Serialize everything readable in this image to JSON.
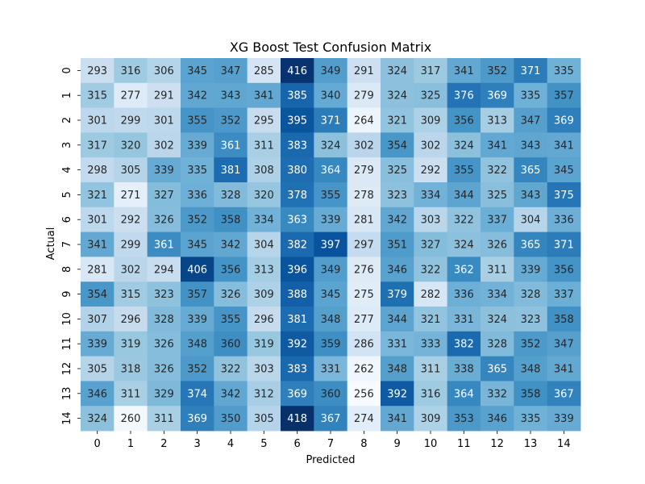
{
  "chart_data": {
    "type": "heatmap",
    "title": "XG Boost Test Confusion Matrix",
    "xlabel": "Predicted",
    "ylabel": "Actual",
    "x_categories": [
      "0",
      "1",
      "2",
      "3",
      "4",
      "5",
      "6",
      "7",
      "8",
      "9",
      "10",
      "11",
      "12",
      "13",
      "14"
    ],
    "y_categories": [
      "0",
      "1",
      "2",
      "3",
      "4",
      "5",
      "6",
      "7",
      "8",
      "9",
      "10",
      "11",
      "12",
      "13",
      "14"
    ],
    "values": [
      [
        293,
        316,
        306,
        345,
        347,
        285,
        416,
        349,
        291,
        324,
        317,
        341,
        352,
        371,
        335
      ],
      [
        315,
        277,
        291,
        342,
        343,
        341,
        385,
        340,
        279,
        324,
        325,
        376,
        369,
        335,
        357
      ],
      [
        301,
        299,
        301,
        355,
        352,
        295,
        395,
        371,
        264,
        321,
        309,
        356,
        313,
        347,
        369
      ],
      [
        317,
        320,
        302,
        339,
        361,
        311,
        383,
        324,
        302,
        354,
        302,
        324,
        341,
        343,
        341
      ],
      [
        298,
        305,
        339,
        335,
        381,
        308,
        380,
        364,
        279,
        325,
        292,
        355,
        322,
        365,
        345
      ],
      [
        321,
        271,
        327,
        336,
        328,
        320,
        378,
        355,
        278,
        323,
        334,
        344,
        325,
        343,
        375
      ],
      [
        301,
        292,
        326,
        352,
        358,
        334,
        363,
        339,
        281,
        342,
        303,
        322,
        337,
        304,
        336
      ],
      [
        341,
        299,
        361,
        345,
        342,
        304,
        382,
        397,
        297,
        351,
        327,
        324,
        326,
        365,
        371
      ],
      [
        281,
        302,
        294,
        406,
        356,
        313,
        396,
        349,
        276,
        346,
        322,
        362,
        311,
        339,
        356
      ],
      [
        354,
        315,
        323,
        357,
        326,
        309,
        388,
        345,
        275,
        379,
        282,
        336,
        334,
        328,
        337
      ],
      [
        307,
        296,
        328,
        339,
        355,
        296,
        381,
        348,
        277,
        344,
        321,
        331,
        324,
        323,
        358
      ],
      [
        339,
        319,
        326,
        348,
        360,
        319,
        392,
        359,
        286,
        331,
        333,
        382,
        328,
        352,
        347
      ],
      [
        305,
        318,
        326,
        352,
        322,
        303,
        383,
        331,
        262,
        348,
        311,
        338,
        365,
        348,
        341
      ],
      [
        346,
        311,
        329,
        374,
        342,
        312,
        369,
        360,
        256,
        392,
        316,
        364,
        332,
        358,
        367
      ],
      [
        324,
        260,
        311,
        369,
        350,
        305,
        418,
        367,
        274,
        341,
        309,
        353,
        346,
        335,
        339
      ]
    ],
    "colormap": "Blues",
    "vmin": 256,
    "vmax": 418,
    "colorbar": false,
    "annotate": true
  }
}
